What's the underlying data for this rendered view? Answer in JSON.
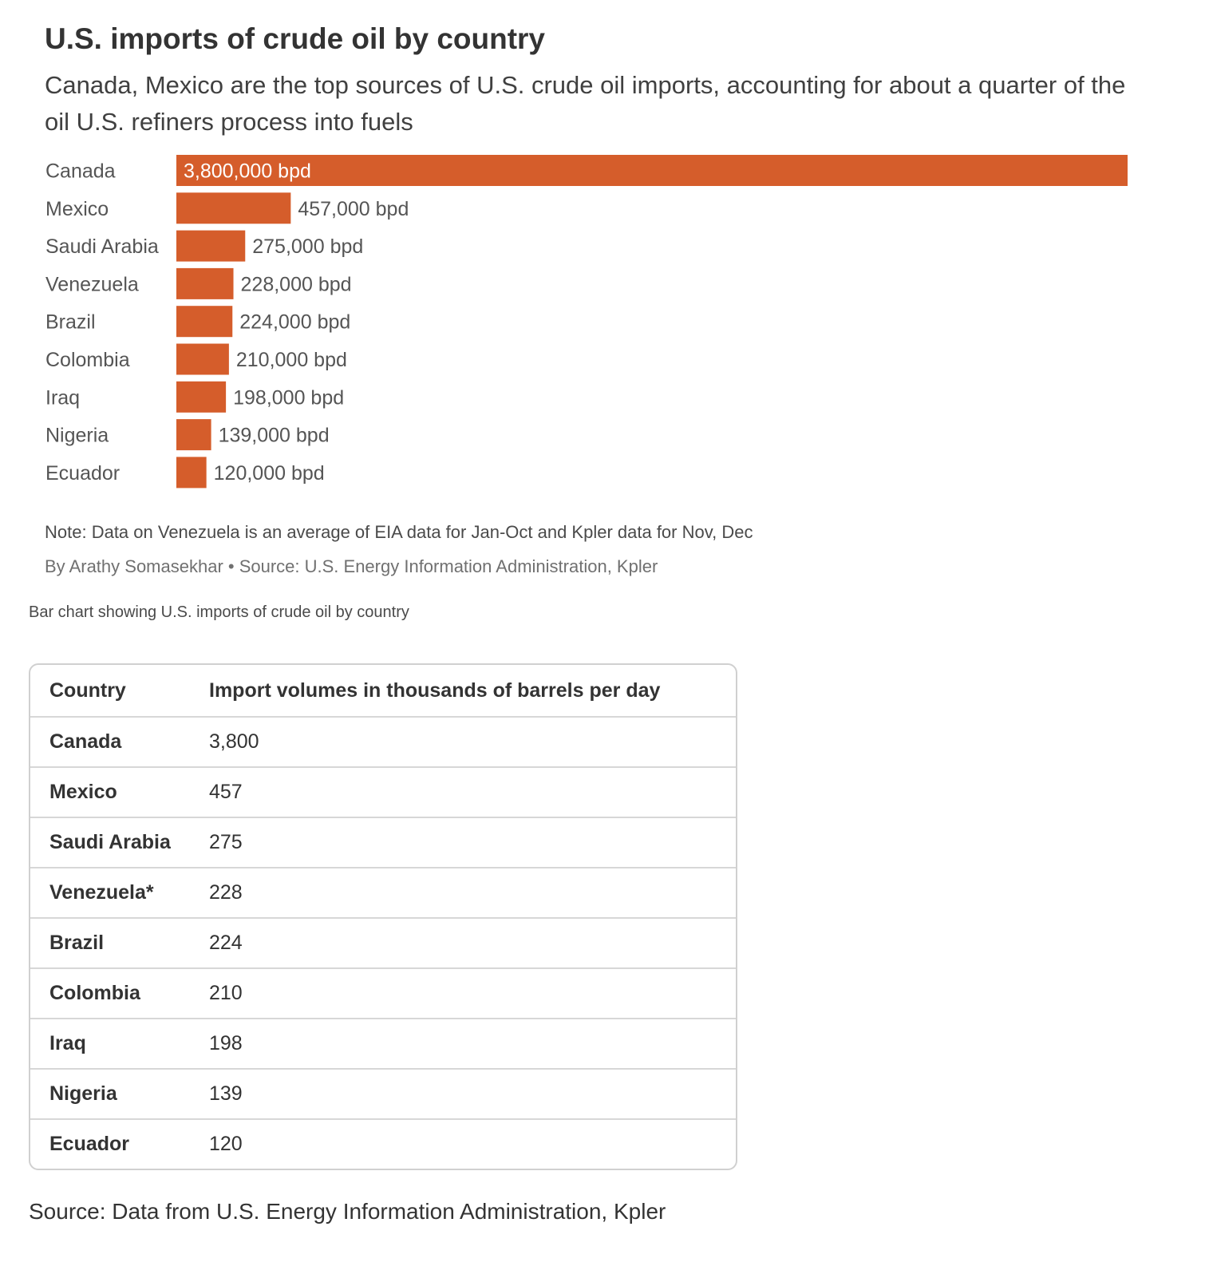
{
  "title": "U.S. imports of crude oil by country",
  "subtitle": "Canada, Mexico are the top sources of U.S. crude oil imports, accounting for about a quarter of the oil U.S. refiners process into fuels",
  "colors": {
    "bar": "#D55D2B",
    "label_inside": "#ffffff",
    "label_outside": "#555555",
    "category": "#555555"
  },
  "chart_data": {
    "type": "bar",
    "orientation": "horizontal",
    "title": "U.S. imports of crude oil by country",
    "categories": [
      "Canada",
      "Mexico",
      "Saudi Arabia",
      "Venezuela",
      "Brazil",
      "Colombia",
      "Iraq",
      "Nigeria",
      "Ecuador"
    ],
    "values": [
      3800000,
      457000,
      275000,
      228000,
      224000,
      210000,
      198000,
      139000,
      120000
    ],
    "value_labels": [
      "3,800,000 bpd",
      "457,000 bpd",
      "275,000 bpd",
      "228,000 bpd",
      "224,000 bpd",
      "210,000 bpd",
      "198,000 bpd",
      "139,000 bpd",
      "120,000 bpd"
    ],
    "unit": "bpd",
    "xlim": [
      0,
      3800000
    ],
    "grid": false,
    "legend": "none"
  },
  "note": "Note: Data on Venezuela is an average of EIA data for Jan-Oct and Kpler data for Nov, Dec",
  "byline": "By Arathy Somasekhar • Source: U.S. Energy Information Administration, Kpler",
  "alt_text": "Bar chart showing U.S. imports of crude oil by country",
  "table": {
    "headers": [
      "Country",
      "Import volumes in thousands of barrels per day"
    ],
    "rows": [
      [
        "Canada",
        "3,800"
      ],
      [
        "Mexico",
        "457"
      ],
      [
        "Saudi Arabia",
        "275"
      ],
      [
        "Venezuela*",
        "228"
      ],
      [
        "Brazil",
        "224"
      ],
      [
        "Colombia",
        "210"
      ],
      [
        "Iraq",
        "198"
      ],
      [
        "Nigeria",
        "139"
      ],
      [
        "Ecuador",
        "120"
      ]
    ]
  },
  "source": "Source: Data from U.S. Energy Information Administration, Kpler"
}
